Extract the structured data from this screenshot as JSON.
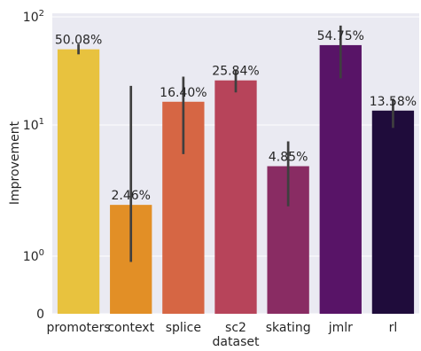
{
  "chart_data": {
    "type": "bar",
    "xlabel": "dataset",
    "ylabel": "Improvement",
    "y_scale": "symlog",
    "ylim": [
      0,
      100
    ],
    "grid": true,
    "y_ticks": [
      {
        "value": 0,
        "base": "0",
        "exp": ""
      },
      {
        "value": 1,
        "base": "10",
        "exp": "0"
      },
      {
        "value": 10,
        "base": "10",
        "exp": "1"
      },
      {
        "value": 100,
        "base": "10",
        "exp": "2"
      }
    ],
    "categories": [
      "promoters",
      "context",
      "splice",
      "sc2",
      "skating",
      "jmlr",
      "rl"
    ],
    "values": [
      50.08,
      2.46,
      16.4,
      25.84,
      4.85,
      54.75,
      13.58
    ],
    "labels": [
      "50.08%",
      "2.46%",
      "16.40%",
      "25.84%",
      "4.85%",
      "54.75%",
      "13.58%"
    ],
    "error_low": [
      45,
      0.9,
      6,
      20,
      2.4,
      27,
      9.5
    ],
    "error_high": [
      56,
      23,
      28,
      32,
      7.5,
      83,
      17.5
    ],
    "colors": [
      "#e8c23e",
      "#e28f26",
      "#d66644",
      "#b7445a",
      "#892c63",
      "#581467",
      "#1f0c3b"
    ]
  }
}
